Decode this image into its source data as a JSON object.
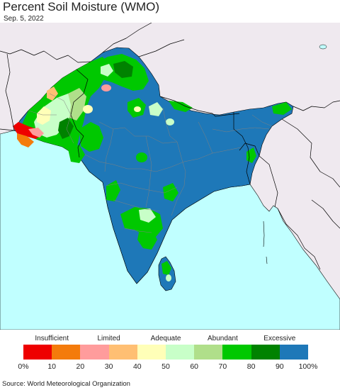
{
  "title": "Percent Soil Moisture (WMO)",
  "date": "Sep. 5, 2022",
  "source": "Source: World Meteorological Organization",
  "legend": {
    "categories": [
      "Insufficient",
      "Limited",
      "Adequate",
      "Abundant",
      "Excessive"
    ],
    "ticks": [
      "0%",
      "10",
      "20",
      "30",
      "40",
      "50",
      "60",
      "70",
      "80",
      "90",
      "100%"
    ],
    "colors": [
      "#ee0000",
      "#f47b0b",
      "#ff9c9c",
      "#ffbf73",
      "#ffffb8",
      "#c8ffc8",
      "#b0df8a",
      "#00c800",
      "#008200",
      "#1e78b8"
    ]
  },
  "map_colors": {
    "ocean": "#c0ffff",
    "outside_region": "#efe9ef",
    "excessive": "#1e78b8",
    "boundary": "#000000"
  }
}
